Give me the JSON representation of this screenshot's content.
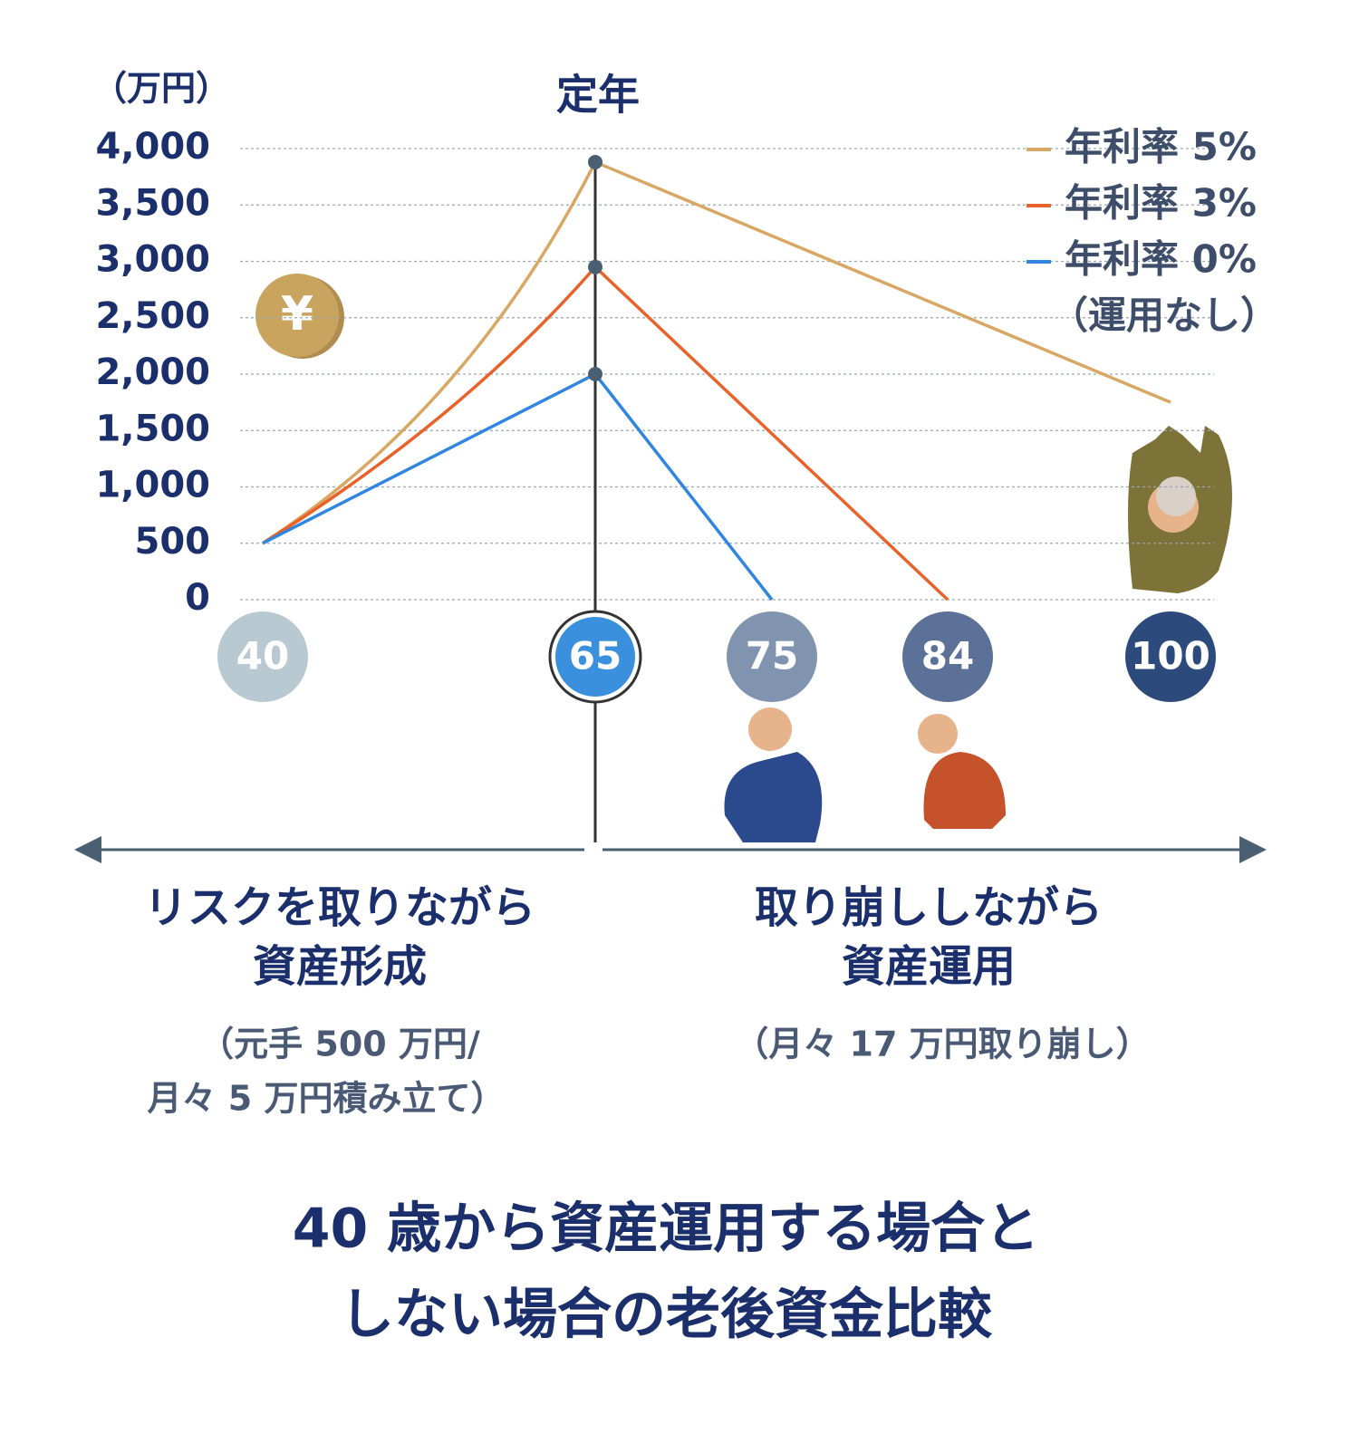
{
  "chart_data": {
    "type": "line",
    "title_lines": [
      "40 歳から資産運用する場合と",
      "しない場合の老後資金比較"
    ],
    "y_label": "（万円）",
    "marker_label": "定年",
    "ylim": [
      0,
      4000
    ],
    "yticks": [
      0,
      500,
      {
        "value": 1000,
        "label": "1,000"
      },
      {
        "value": 1500,
        "label": "1,500"
      },
      {
        "value": 2000,
        "label": "2,000"
      },
      {
        "value": 2500,
        "label": "2,500"
      },
      {
        "value": 3000,
        "label": "3,000"
      },
      {
        "value": 3500,
        "label": "3,500"
      },
      {
        "value": 4000,
        "label": "4,000"
      }
    ],
    "xlim": [
      40,
      100
    ],
    "xticks": [
      40,
      65,
      75,
      84,
      100
    ],
    "xtick_colors": [
      "#b9c9d2",
      "#3a90dc",
      "#8094b0",
      "#5b7198",
      "#2d4a7c"
    ],
    "grid": true,
    "legend": "top-right",
    "series": [
      {
        "name": "年利率 5%",
        "color": "#d9a764",
        "x": [
          40,
          65,
          100
        ],
        "values": [
          500,
          3880,
          1750
        ]
      },
      {
        "name": "年利率 3%",
        "color": "#e8622a",
        "x": [
          40,
          65,
          84
        ],
        "values": [
          500,
          2950,
          0
        ]
      },
      {
        "name": "年利率 0%",
        "color": "#2f86e0",
        "x": [
          40,
          65,
          75
        ],
        "values": [
          500,
          2000,
          0
        ],
        "legend_note": "（運用なし）"
      }
    ],
    "phases": [
      {
        "title_lines": [
          "リスクを取りながら",
          "資産形成"
        ],
        "note_lines": [
          "（元手 500 万円/",
          "月々 5 万円積み立て）"
        ]
      },
      {
        "title_lines": [
          "取り崩ししながら",
          "資産運用"
        ],
        "note_lines": [
          "（月々 17 万円取り崩し）"
        ]
      }
    ]
  }
}
